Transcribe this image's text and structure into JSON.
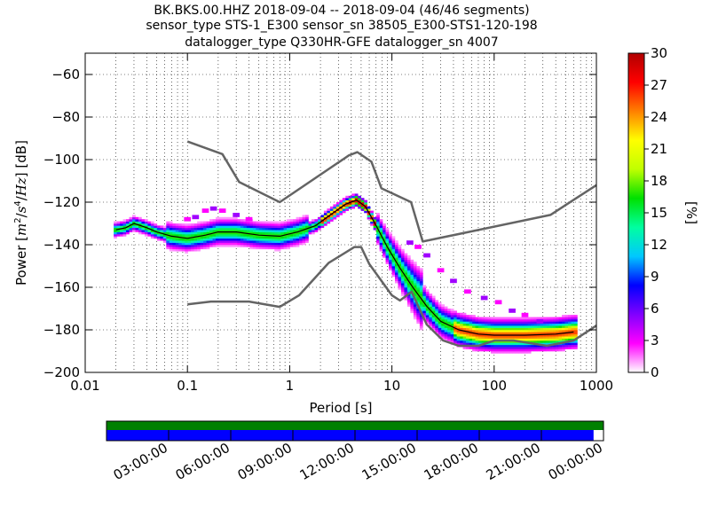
{
  "header": {
    "line1": "BK.BKS.00.HHZ   2018-09-04 -- 2018-09-04  (46/46 segments)",
    "line2": "sensor_type STS-1_E300 sensor_sn 38505_E300-STS1-120-198",
    "line3": "datalogger_type Q330HR-GFE datalogger_sn 4007"
  },
  "chart_data": {
    "type": "heatmap",
    "xlabel": "Period [s]",
    "ylabel_parts": {
      "prefix": "Power [",
      "m": "m",
      "exp2": "2",
      "slash1": "/",
      "s": "s",
      "exp4": "4",
      "slash2": "/",
      "hz": "Hz",
      "suffix": "] [dB]"
    },
    "xscale": "log",
    "xlim": [
      0.01,
      1000
    ],
    "ylim": [
      -200,
      -50
    ],
    "xticks": [
      0.01,
      0.1,
      1,
      10,
      100,
      1000
    ],
    "xtick_labels": [
      "0.01",
      "0.1",
      "1",
      "10",
      "100",
      "1000"
    ],
    "yticks": [
      -60,
      -80,
      -100,
      -120,
      -140,
      -160,
      -180,
      -200
    ],
    "ytick_labels": [
      "−60",
      "−80",
      "−100",
      "−120",
      "−140",
      "−160",
      "−180",
      "−200"
    ],
    "grid": "dotted, vertical at each log sub-decade",
    "colorbar": {
      "label": "[%]",
      "min": 0,
      "max": 30,
      "ticks": [
        0,
        3,
        6,
        9,
        12,
        15,
        18,
        21,
        24,
        27,
        30
      ],
      "tick_labels": [
        "0",
        "3",
        "6",
        "9",
        "12",
        "15",
        "18",
        "21",
        "24",
        "27",
        "30"
      ],
      "colormap": [
        "#ffffff",
        "#ff00ff",
        "#8000ff",
        "#0000ff",
        "#00c8ff",
        "#00ffa0",
        "#00e000",
        "#c0ff00",
        "#ffff00",
        "#ff8000",
        "#ff0000",
        "#b00000"
      ]
    },
    "noise_models": {
      "high": {
        "period": [
          0.1,
          0.22,
          0.32,
          0.8,
          3.8,
          4.6,
          6.3,
          7.9,
          15.4,
          20,
          354.8,
          1000
        ],
        "power": [
          -91.5,
          -97.4,
          -110.5,
          -120,
          -98,
          -96.5,
          -101,
          -113.5,
          -120,
          -138.5,
          -126,
          -112
        ]
      },
      "low": {
        "period": [
          0.1,
          0.17,
          0.4,
          0.8,
          1.24,
          2.4,
          4.3,
          5,
          6,
          10,
          12,
          15.6,
          21.9,
          31.6,
          45,
          70,
          101,
          154,
          328,
          600,
          1000
        ],
        "power": [
          -168,
          -166.7,
          -166.7,
          -169.2,
          -163.7,
          -148.6,
          -141.1,
          -141.1,
          -149,
          -163.8,
          -166.2,
          -162.1,
          -177.5,
          -185,
          -187.5,
          -187.5,
          -185,
          -185,
          -187.5,
          -185,
          -178
        ]
      }
    },
    "mode_curve": {
      "period": [
        0.02,
        0.025,
        0.03,
        0.04,
        0.05,
        0.07,
        0.1,
        0.15,
        0.2,
        0.3,
        0.5,
        0.8,
        1.2,
        1.8,
        2.5,
        3.5,
        4.5,
        5.5,
        7,
        9,
        12,
        16,
        22,
        30,
        45,
        70,
        100,
        200,
        400,
        600
      ],
      "power": [
        -133,
        -132,
        -130,
        -132,
        -134,
        -136,
        -137,
        -135.5,
        -134,
        -134,
        -135.5,
        -136,
        -134,
        -131,
        -126,
        -121,
        -119,
        -122,
        -131,
        -141,
        -151,
        -160,
        -169,
        -176,
        -180,
        -182,
        -182.5,
        -182.5,
        -182,
        -181
      ]
    },
    "scatter_outliers": {
      "period": [
        0.1,
        0.12,
        0.15,
        0.18,
        0.22,
        0.3,
        0.4,
        15,
        18,
        22,
        30,
        40,
        55,
        80,
        110,
        150,
        200,
        280
      ],
      "power": [
        -128,
        -127,
        -124,
        -123,
        -124,
        -126,
        -128,
        -139,
        -141,
        -145,
        -152,
        -157,
        -162,
        -165,
        -167,
        -171,
        -173,
        -176
      ]
    }
  },
  "timeline": {
    "segments_fraction": 1.0,
    "data_fraction": 0.98,
    "segments_color": "#008000",
    "data_color": "#0000ff",
    "tick_labels": [
      "03:00:00",
      "06:00:00",
      "09:00:00",
      "12:00:00",
      "15:00:00",
      "18:00:00",
      "21:00:00",
      "00:00:00"
    ]
  },
  "colors": {
    "noise_model": "#646464",
    "mode": "#000000",
    "grid": "#000000"
  }
}
